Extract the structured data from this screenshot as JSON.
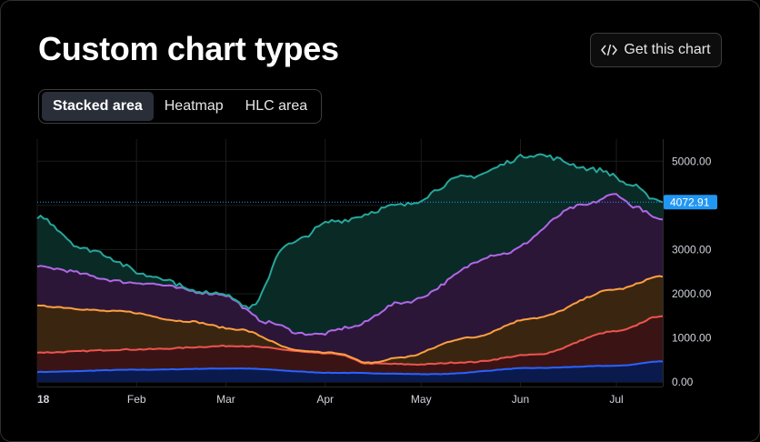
{
  "title": "Custom chart types",
  "get_chart_button": {
    "label": "Get this chart",
    "icon": "code-icon"
  },
  "tabs": [
    {
      "label": "Stacked area",
      "active": true
    },
    {
      "label": "Heatmap",
      "active": false
    },
    {
      "label": "HLC area",
      "active": false
    }
  ],
  "colors": {
    "background": "#000000",
    "grid": "#1c1c1c",
    "axis_text": "#d1d4dc",
    "price_label_bg": "#2196f3",
    "series": [
      "#2962ff",
      "#ef5350",
      "#ff9f40",
      "#b068e6",
      "#26a69a"
    ]
  },
  "chart_data": {
    "type": "area",
    "stacked": true,
    "x": [
      "18",
      "Feb",
      "Mar",
      "Apr",
      "May",
      "Jun",
      "Jul"
    ],
    "x_domain": [
      0,
      189
    ],
    "x_tick_days": [
      0,
      30,
      57,
      87,
      116,
      146,
      175
    ],
    "x_tick_bold": [
      true,
      false,
      false,
      false,
      false,
      false,
      false
    ],
    "ylim": [
      -100,
      5500
    ],
    "y_ticks": [
      0,
      1000,
      2000,
      3000,
      4000,
      5000
    ],
    "y_tick_labels": [
      "0.00",
      "1000.00",
      "2000.00",
      "3000.00",
      "",
      "5000.00"
    ],
    "last_value_label": "4072.91",
    "last_value": 4073,
    "grid": true,
    "series_cumulative_tops": [
      {
        "days": [
          0,
          30,
          60,
          90,
          120,
          150,
          175,
          189
        ],
        "values": [
          230,
          280,
          310,
          210,
          180,
          320,
          370,
          470
        ]
      },
      {
        "days": [
          0,
          30,
          60,
          90,
          100,
          115,
          130,
          150,
          175,
          189
        ],
        "values": [
          670,
          740,
          820,
          640,
          420,
          400,
          450,
          620,
          1150,
          1500
        ]
      },
      {
        "days": [
          0,
          25,
          45,
          60,
          80,
          90,
          100,
          110,
          130,
          150,
          175,
          189
        ],
        "values": [
          1720,
          1600,
          1380,
          1200,
          700,
          550,
          420,
          560,
          1000,
          1450,
          2100,
          2400
        ]
      },
      {
        "days": [
          0,
          30,
          55,
          70,
          80,
          85,
          95,
          110,
          140,
          165,
          175,
          180,
          189
        ],
        "values": [
          2600,
          2250,
          2000,
          1350,
          1100,
          1080,
          1250,
          1800,
          2900,
          4000,
          4250,
          3980,
          3650
        ]
      },
      {
        "days": [
          0,
          15,
          35,
          55,
          65,
          75,
          90,
          110,
          130,
          150,
          170,
          180,
          185,
          189
        ],
        "values": [
          3750,
          3000,
          2400,
          1800,
          1700,
          3100,
          3650,
          4000,
          4650,
          5150,
          4800,
          4450,
          4200,
          4073
        ]
      }
    ]
  }
}
